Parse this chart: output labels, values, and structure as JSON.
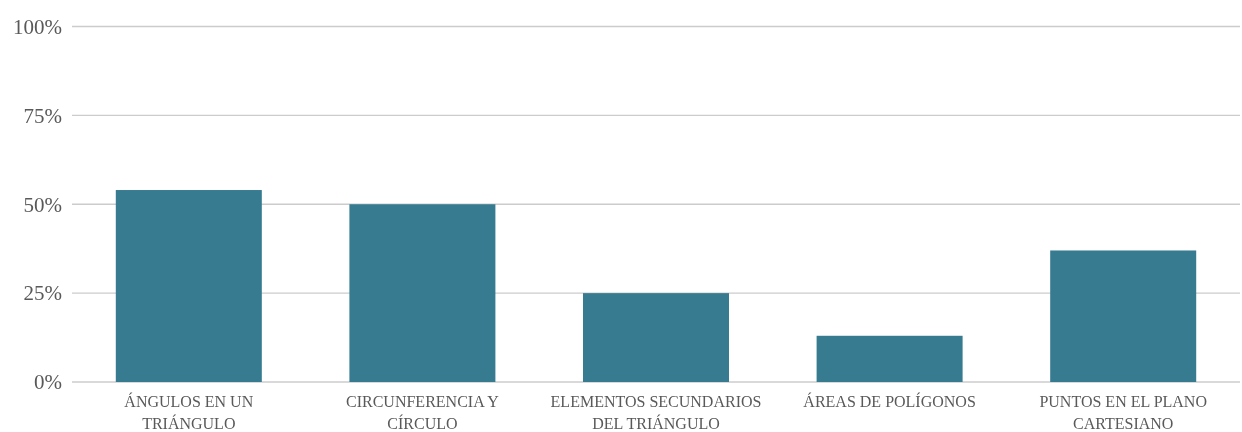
{
  "chart_data": {
    "type": "bar",
    "categories": [
      "ÁNGULOS EN UN TRIÁNGULO",
      "CIRCUNFERENCIA Y CÍRCULO",
      "ELEMENTOS SECUNDARIOS DEL TRIÁNGULO",
      "ÁREAS DE POLÍGONOS",
      "PUNTOS EN EL PLANO CARTESIANO"
    ],
    "values": [
      54,
      50,
      25,
      13,
      37
    ],
    "color": "#367b90",
    "ylim": [
      0,
      100
    ],
    "yticks": [
      {
        "value": 0,
        "label": "0%"
      },
      {
        "value": 25,
        "label": "25%"
      },
      {
        "value": 50,
        "label": "50%"
      },
      {
        "value": 75,
        "label": "75%"
      },
      {
        "value": 100,
        "label": "100%"
      }
    ],
    "grid": "y"
  }
}
